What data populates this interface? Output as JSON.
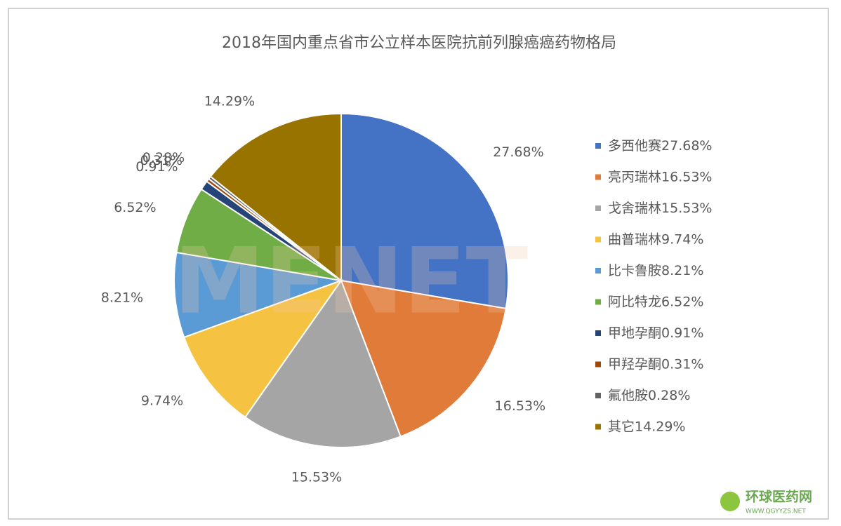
{
  "chart_data": {
    "type": "pie",
    "title": "2018年国内重点省市公立样本医院抗前列腺癌癌药物格局",
    "categories": [
      "多西他赛",
      "亮丙瑞林",
      "戈舍瑞林",
      "曲普瑞林",
      "比卡鲁胺",
      "阿比特龙",
      "甲地孕酮",
      "甲羟孕酮",
      "氟他胺",
      "其它"
    ],
    "values": [
      27.68,
      16.53,
      15.53,
      9.74,
      8.21,
      6.52,
      0.91,
      0.31,
      0.28,
      14.29
    ],
    "value_labels": [
      "27.68%",
      "16.53%",
      "15.53%",
      "9.74%",
      "8.21%",
      "6.52%",
      "0.91%",
      "0.31%",
      "0.28%",
      "14.29%"
    ],
    "colors": [
      "#4472c4",
      "#e07b3a",
      "#a5a5a5",
      "#f5c242",
      "#5b9bd5",
      "#70ad47",
      "#264478",
      "#9e480e",
      "#636363",
      "#997300"
    ],
    "legend": "right",
    "watermark": "MENET"
  },
  "footer": {
    "logo_text": "环球医药网",
    "logo_url": "WWW.QGYYZS.NET"
  }
}
